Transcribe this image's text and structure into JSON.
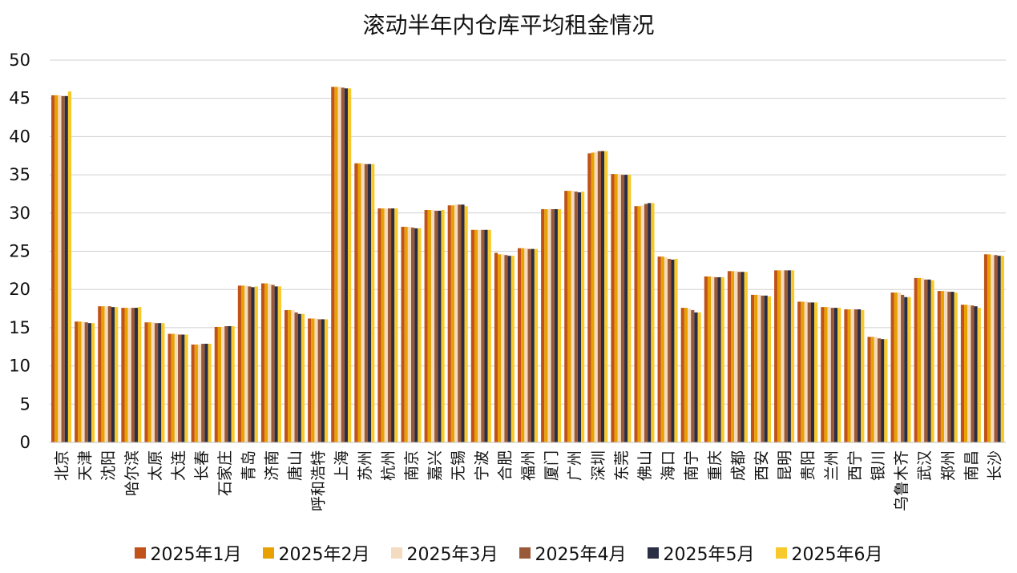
{
  "chart_data": {
    "type": "bar",
    "title": "滚动半年内仓库平均租金情况",
    "xlabel": "",
    "ylabel": "",
    "ylim": [
      0,
      50
    ],
    "yticks": [
      0,
      5,
      10,
      15,
      20,
      25,
      30,
      35,
      40,
      45,
      50
    ],
    "grid": true,
    "legend_position": "bottom",
    "categories": [
      "北京",
      "天津",
      "沈阳",
      "哈尔滨",
      "太原",
      "大连",
      "长春",
      "石家庄",
      "青岛",
      "济南",
      "唐山",
      "呼和浩特",
      "上海",
      "苏州",
      "杭州",
      "南京",
      "嘉兴",
      "无锡",
      "宁波",
      "合肥",
      "福州",
      "厦门",
      "广州",
      "深圳",
      "东莞",
      "佛山",
      "海口",
      "南宁",
      "重庆",
      "成都",
      "西安",
      "昆明",
      "贵阳",
      "兰州",
      "西宁",
      "银川",
      "乌鲁木齐",
      "武汉",
      "郑州",
      "南昌",
      "长沙"
    ],
    "series": [
      {
        "name": "2025年1月",
        "color": "#C0521A",
        "values": [
          45.4,
          15.8,
          17.8,
          17.6,
          15.7,
          14.2,
          12.8,
          15.1,
          20.5,
          20.8,
          17.3,
          16.2,
          46.5,
          36.5,
          30.6,
          28.2,
          30.4,
          31.0,
          27.8,
          24.8,
          25.4,
          30.5,
          32.9,
          37.8,
          35.1,
          30.9,
          24.3,
          17.6,
          21.7,
          22.4,
          19.3,
          22.5,
          18.4,
          17.7,
          17.4,
          13.8,
          19.6,
          21.5,
          19.8,
          18.0,
          24.6
        ]
      },
      {
        "name": "2025年2月",
        "color": "#E8A100",
        "values": [
          45.4,
          15.8,
          17.8,
          17.6,
          15.7,
          14.2,
          12.8,
          15.1,
          20.5,
          20.8,
          17.3,
          16.2,
          46.5,
          36.5,
          30.6,
          28.2,
          30.4,
          31.0,
          27.8,
          24.6,
          25.4,
          30.5,
          32.9,
          37.9,
          35.1,
          30.9,
          24.3,
          17.6,
          21.7,
          22.4,
          19.3,
          22.5,
          18.4,
          17.7,
          17.4,
          13.8,
          19.6,
          21.5,
          19.8,
          18.0,
          24.6
        ]
      },
      {
        "name": "2025年3月",
        "color": "#F5DCC0",
        "values": [
          45.4,
          15.8,
          17.8,
          17.6,
          15.7,
          14.2,
          12.8,
          15.1,
          20.5,
          20.7,
          17.3,
          16.2,
          46.5,
          36.5,
          30.6,
          28.2,
          30.4,
          31.1,
          27.8,
          24.6,
          25.4,
          30.5,
          32.9,
          38.0,
          35.1,
          31.0,
          24.2,
          17.5,
          21.7,
          22.4,
          19.3,
          22.5,
          18.4,
          17.7,
          17.4,
          13.8,
          19.6,
          21.5,
          19.8,
          18.0,
          24.5
        ]
      },
      {
        "name": "2025年4月",
        "color": "#9A5A3A",
        "values": [
          45.3,
          15.7,
          17.8,
          17.6,
          15.6,
          14.1,
          12.9,
          15.2,
          20.4,
          20.6,
          17.0,
          16.1,
          46.4,
          36.4,
          30.6,
          28.1,
          30.3,
          31.1,
          27.8,
          24.5,
          25.3,
          30.5,
          32.8,
          38.1,
          35.0,
          31.2,
          24.0,
          17.3,
          21.6,
          22.3,
          19.2,
          22.5,
          18.3,
          17.6,
          17.4,
          13.6,
          19.3,
          21.3,
          19.7,
          17.9,
          24.5
        ]
      },
      {
        "name": "2025年5月",
        "color": "#2A2E45",
        "values": [
          45.3,
          15.6,
          17.7,
          17.6,
          15.6,
          14.1,
          12.9,
          15.2,
          20.3,
          20.4,
          16.8,
          16.1,
          46.3,
          36.4,
          30.6,
          28.0,
          30.3,
          31.1,
          27.8,
          24.4,
          25.3,
          30.5,
          32.7,
          38.1,
          35.0,
          31.3,
          23.9,
          17.0,
          21.6,
          22.3,
          19.2,
          22.5,
          18.3,
          17.6,
          17.4,
          13.5,
          19.0,
          21.3,
          19.7,
          17.8,
          24.4
        ]
      },
      {
        "name": "2025年6月",
        "color": "#F7C92B",
        "values": [
          45.9,
          15.6,
          17.7,
          17.7,
          15.6,
          14.1,
          12.9,
          15.2,
          20.4,
          20.4,
          16.8,
          16.1,
          46.3,
          36.4,
          30.6,
          28.0,
          30.4,
          30.9,
          27.8,
          24.4,
          25.3,
          30.5,
          32.8,
          38.1,
          35.0,
          31.3,
          24.0,
          17.0,
          21.6,
          22.3,
          19.1,
          22.5,
          18.3,
          17.6,
          17.3,
          13.5,
          19.0,
          21.2,
          19.6,
          17.6,
          24.4
        ]
      }
    ]
  }
}
